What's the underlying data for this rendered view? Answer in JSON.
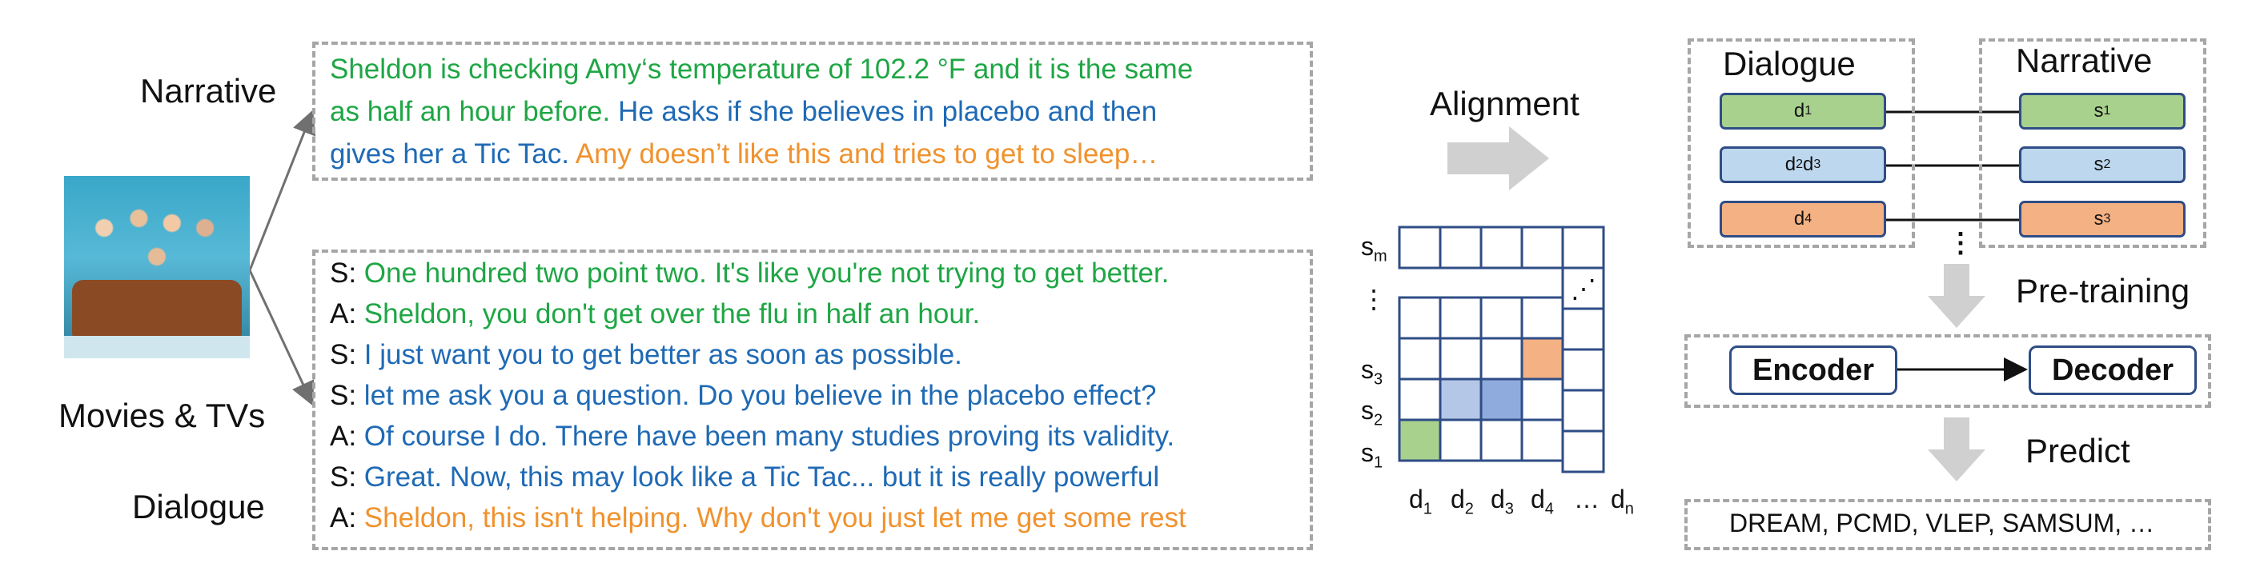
{
  "left": {
    "narrative_label": "Narrative",
    "source_label": "Movies & TVs",
    "dialogue_label": "Dialogue",
    "image_name": "tv-show-cast-photo"
  },
  "narrative": [
    [
      {
        "t": "Sheldon is checking Amy‘s temperature of 102.2 °F and it is the same",
        "c": "green"
      }
    ],
    [
      {
        "t": "as half an hour before. ",
        "c": "green"
      },
      {
        "t": "He asks if she believes in placebo and then",
        "c": "blue"
      }
    ],
    [
      {
        "t": "gives her a Tic Tac. ",
        "c": "blue"
      },
      {
        "t": "Amy doesn’t like this and tries to get to sleep…",
        "c": "orange"
      }
    ]
  ],
  "dialogue": [
    {
      "speaker": "S:",
      "text": " One hundred two point two. It's like you're not trying to get better.",
      "color": "green"
    },
    {
      "speaker": "A:",
      "text": "  Sheldon, you don't get over the flu in half an hour.",
      "color": "green"
    },
    {
      "speaker": "S:",
      "text": " I just want you to get better as soon as possible.",
      "color": "blue"
    },
    {
      "speaker": "S:",
      "text": " let me ask you a question. Do you believe in the placebo effect?",
      "color": "blue"
    },
    {
      "speaker": "A:",
      "text": " Of course I do. There have been many studies proving its validity.",
      "color": "blue"
    },
    {
      "speaker": "S:",
      "text": "  Great. Now, this may look like a Tic Tac... but it is really powerful",
      "color": "blue"
    },
    {
      "speaker": "A:",
      "text": " Sheldon, this isn't helping. Why don't you just let me get some rest",
      "color": "orange"
    }
  ],
  "matrix": {
    "title": "Alignment",
    "row_labels": [
      {
        "base": "s",
        "sub": "m"
      },
      {
        "base": "⋮",
        "sub": ""
      },
      {
        "base": "s",
        "sub": "3"
      },
      {
        "base": "s",
        "sub": "2"
      },
      {
        "base": "s",
        "sub": "1"
      }
    ],
    "col_labels": [
      {
        "base": "d",
        "sub": "1"
      },
      {
        "base": "d",
        "sub": "2"
      },
      {
        "base": "d",
        "sub": "3"
      },
      {
        "base": "d",
        "sub": "4"
      },
      {
        "base": "…",
        "sub": ""
      },
      {
        "base": "d",
        "sub": "n"
      }
    ],
    "diag_dots": "⋰",
    "highlight_colors": {
      "green": "#a9d18e",
      "light_blue": "#b4c7e7",
      "blue": "#8faadc",
      "orange": "#f4b183"
    }
  },
  "pipeline": {
    "dialogue_header": "Dialogue",
    "narrative_header": "Narrative",
    "pairs": [
      {
        "d": [
          {
            "base": "d",
            "sub": "1"
          }
        ],
        "s": {
          "base": "s",
          "sub": "1"
        },
        "fill": "#a9d18e"
      },
      {
        "d": [
          {
            "base": "d",
            "sub": "2"
          },
          {
            "base": " d",
            "sub": "3"
          }
        ],
        "s": {
          "base": "s",
          "sub": "2"
        },
        "fill": "#bdd7ee"
      },
      {
        "d": [
          {
            "base": "d",
            "sub": "4"
          }
        ],
        "s": {
          "base": "s",
          "sub": "3"
        },
        "fill": "#f4b183"
      }
    ],
    "pairs_more": "⋮",
    "pretraining_label": "Pre-training",
    "encoder_label": "Encoder",
    "decoder_label": "Decoder",
    "predict_label": "Predict",
    "datasets_label": "DREAM, PCMD, VLEP, SAMSUM, …"
  }
}
